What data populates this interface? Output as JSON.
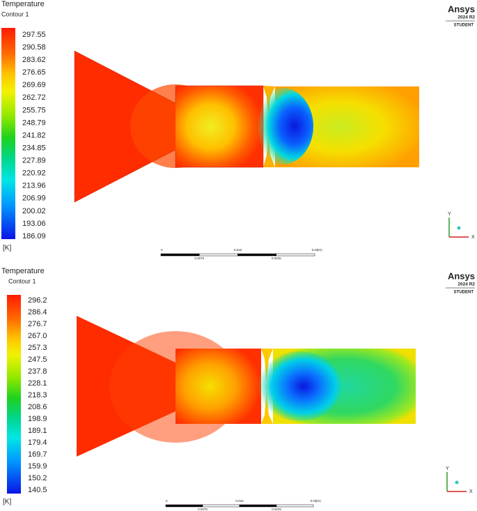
{
  "panels": [
    {
      "title": "Temperature",
      "subtitle": "Contour 1",
      "colorbar_labels": [
        "297.55",
        "290.58",
        "283.62",
        "276.65",
        "269.69",
        "262.72",
        "255.75",
        "248.79",
        "241.82",
        "234.85",
        "227.89",
        "220.92",
        "213.96",
        "206.99",
        "200.02",
        "193.06",
        "186.09"
      ],
      "unit": "[K]",
      "logo": {
        "brand": "Ansys",
        "version": "2024 R2",
        "edition": "STUDENT"
      },
      "scale": {
        "top": [
          "0",
          "0.015",
          "0.03"
        ],
        "unit": "(m)",
        "bottom": [
          "0.0075",
          "0.0225"
        ]
      },
      "axes": {
        "x": "X",
        "y": "Y"
      }
    },
    {
      "title": "Temperature",
      "subtitle": "Contour 1",
      "colorbar_labels": [
        "296.2",
        "286.4",
        "276.7",
        "267.0",
        "257.3",
        "247.5",
        "237.8",
        "228.1",
        "218.3",
        "208.6",
        "198.9",
        "189.1",
        "179.4",
        "169.7",
        "159.9",
        "150.2",
        "140.5"
      ],
      "unit": "[K]",
      "logo": {
        "brand": "Ansys",
        "version": "2024 R2",
        "edition": "STUDENT"
      },
      "scale": {
        "top": [
          "0",
          "0.015",
          "0.03"
        ],
        "unit": "(m)",
        "bottom": [
          "0.0075",
          "0.0225"
        ]
      },
      "axes": {
        "x": "X",
        "y": "Y"
      }
    }
  ]
}
